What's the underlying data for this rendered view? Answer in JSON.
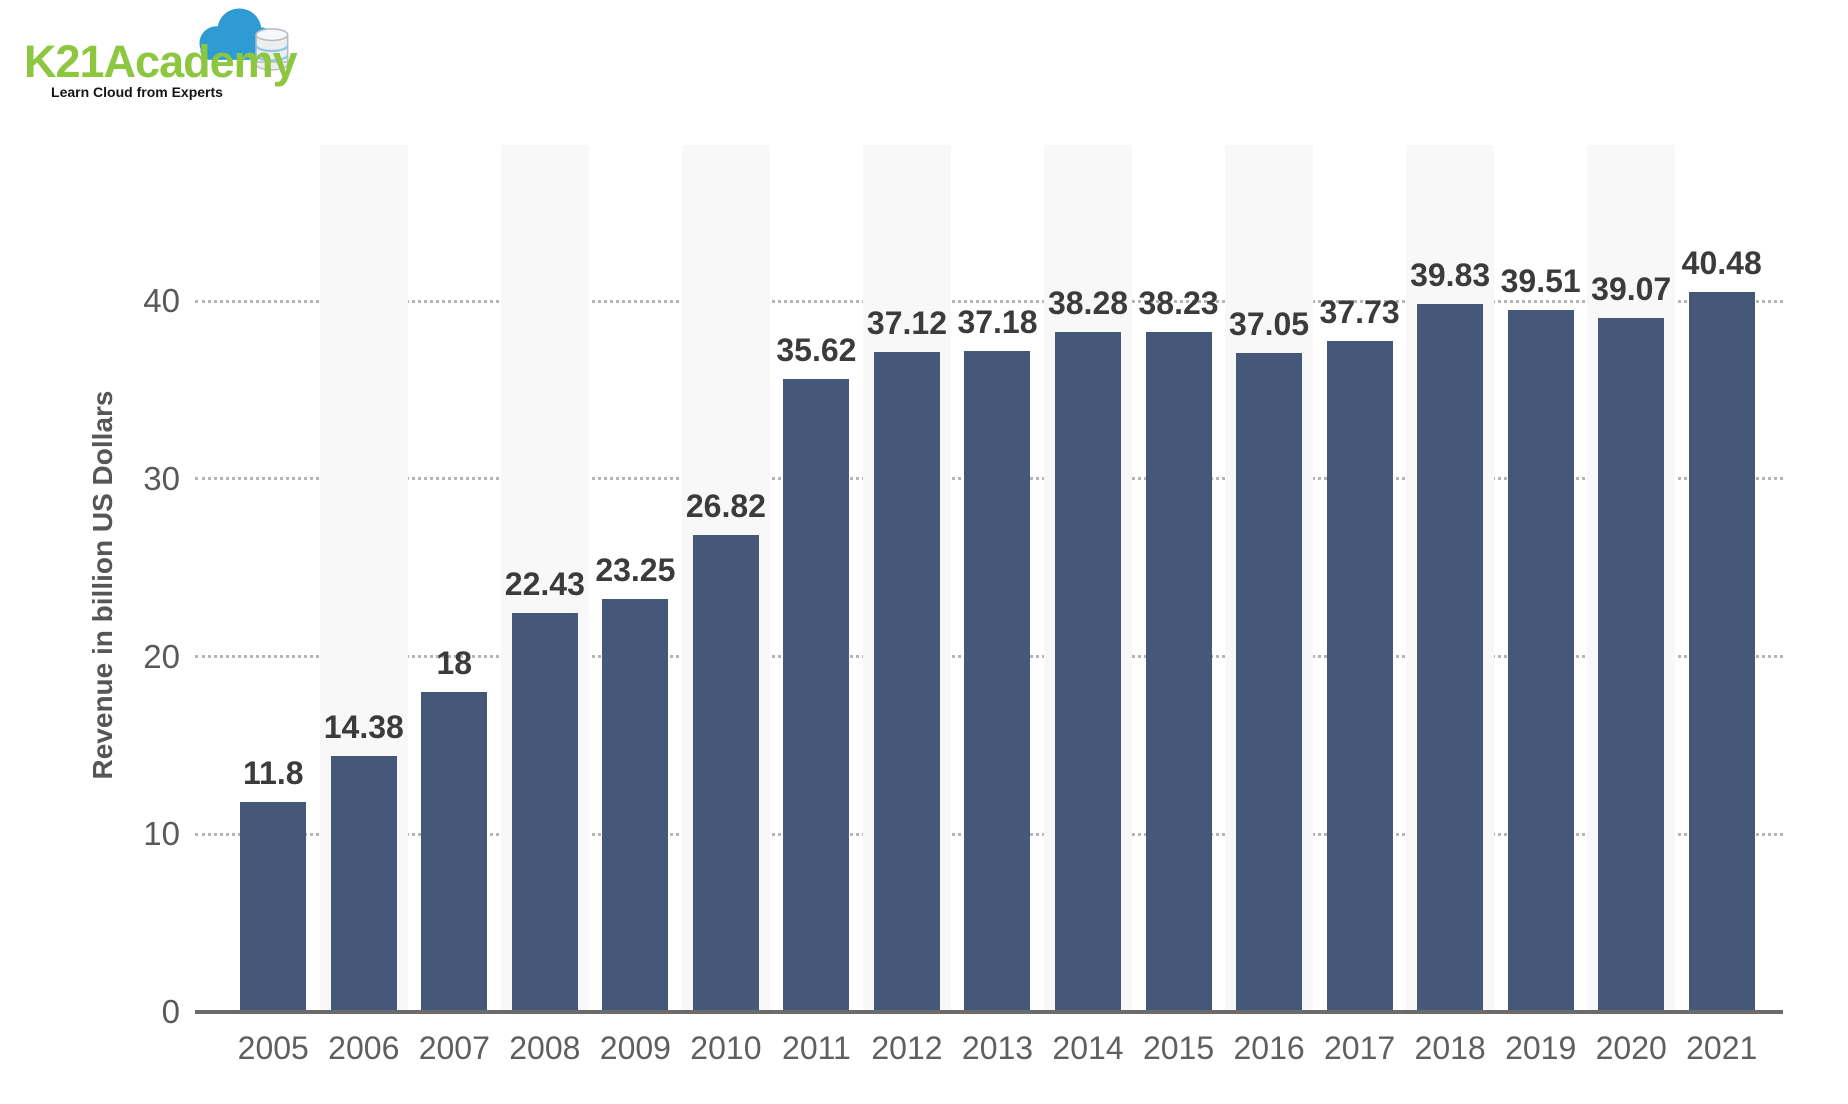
{
  "logo": {
    "brand": "K21Academy",
    "tagline": "Learn Cloud from Experts",
    "colors": {
      "green": "#8dc63f",
      "cloud_blue": "#2e9bd5",
      "db_body": "#eceeef",
      "db_top": "#f7f8f9",
      "db_line": "#8fc4e4",
      "db_stroke": "#b7bdc3",
      "tagline_text": "#141414"
    }
  },
  "chart_data": {
    "type": "bar",
    "title": "",
    "xlabel": "",
    "ylabel": "Revenue in billion US Dollars",
    "categories": [
      "2005",
      "2006",
      "2007",
      "2008",
      "2009",
      "2010",
      "2011",
      "2012",
      "2013",
      "2014",
      "2015",
      "2016",
      "2017",
      "2018",
      "2019",
      "2020",
      "2021"
    ],
    "values": [
      11.8,
      14.38,
      18,
      22.43,
      23.25,
      26.82,
      35.62,
      37.12,
      37.18,
      38.28,
      38.23,
      37.05,
      37.73,
      39.83,
      39.51,
      39.07,
      40.48
    ],
    "value_labels": [
      "11.8",
      "14.38",
      "18",
      "22.43",
      "23.25",
      "26.82",
      "35.62",
      "37.12",
      "37.18",
      "38.28",
      "38.23",
      "37.05",
      "37.73",
      "39.83",
      "39.51",
      "39.07",
      "40.48"
    ],
    "yticks": [
      0,
      10,
      20,
      30,
      40
    ],
    "ylim": [
      0,
      48.8
    ],
    "grid": "dotted-horizontal",
    "legend": "none",
    "background_bands": "light-gray behind even years (2006, 2008, ... 2020)",
    "colors": {
      "bar": "#46587a",
      "band": "#f8f8f8",
      "gridline": "#b5b5b5",
      "axis_line": "#6b6b6b",
      "value_label": "#3b3b3b",
      "tick_label": "#595959",
      "year_label": "#5f5f5f",
      "axis_title": "#565656"
    }
  }
}
